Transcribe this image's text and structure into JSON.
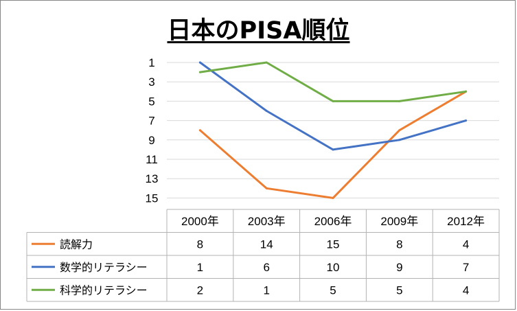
{
  "chart_data": {
    "type": "line",
    "title": "日本のPISA順位",
    "categories": [
      "2000年",
      "2003年",
      "2006年",
      "2009年",
      "2012年"
    ],
    "y_ticks": [
      1,
      3,
      5,
      7,
      9,
      11,
      13,
      15
    ],
    "ylim": [
      1,
      15
    ],
    "y_inverted": true,
    "grid": true,
    "legend": "data-table",
    "series": [
      {
        "name": "読解力",
        "color": "#ED7D31",
        "values": [
          8,
          14,
          15,
          8,
          4
        ]
      },
      {
        "name": "数学的リテラシー",
        "color": "#4472C4",
        "values": [
          1,
          6,
          10,
          9,
          7
        ]
      },
      {
        "name": "科学的リテラシー",
        "color": "#70AD47",
        "values": [
          2,
          1,
          5,
          5,
          4
        ]
      }
    ]
  }
}
